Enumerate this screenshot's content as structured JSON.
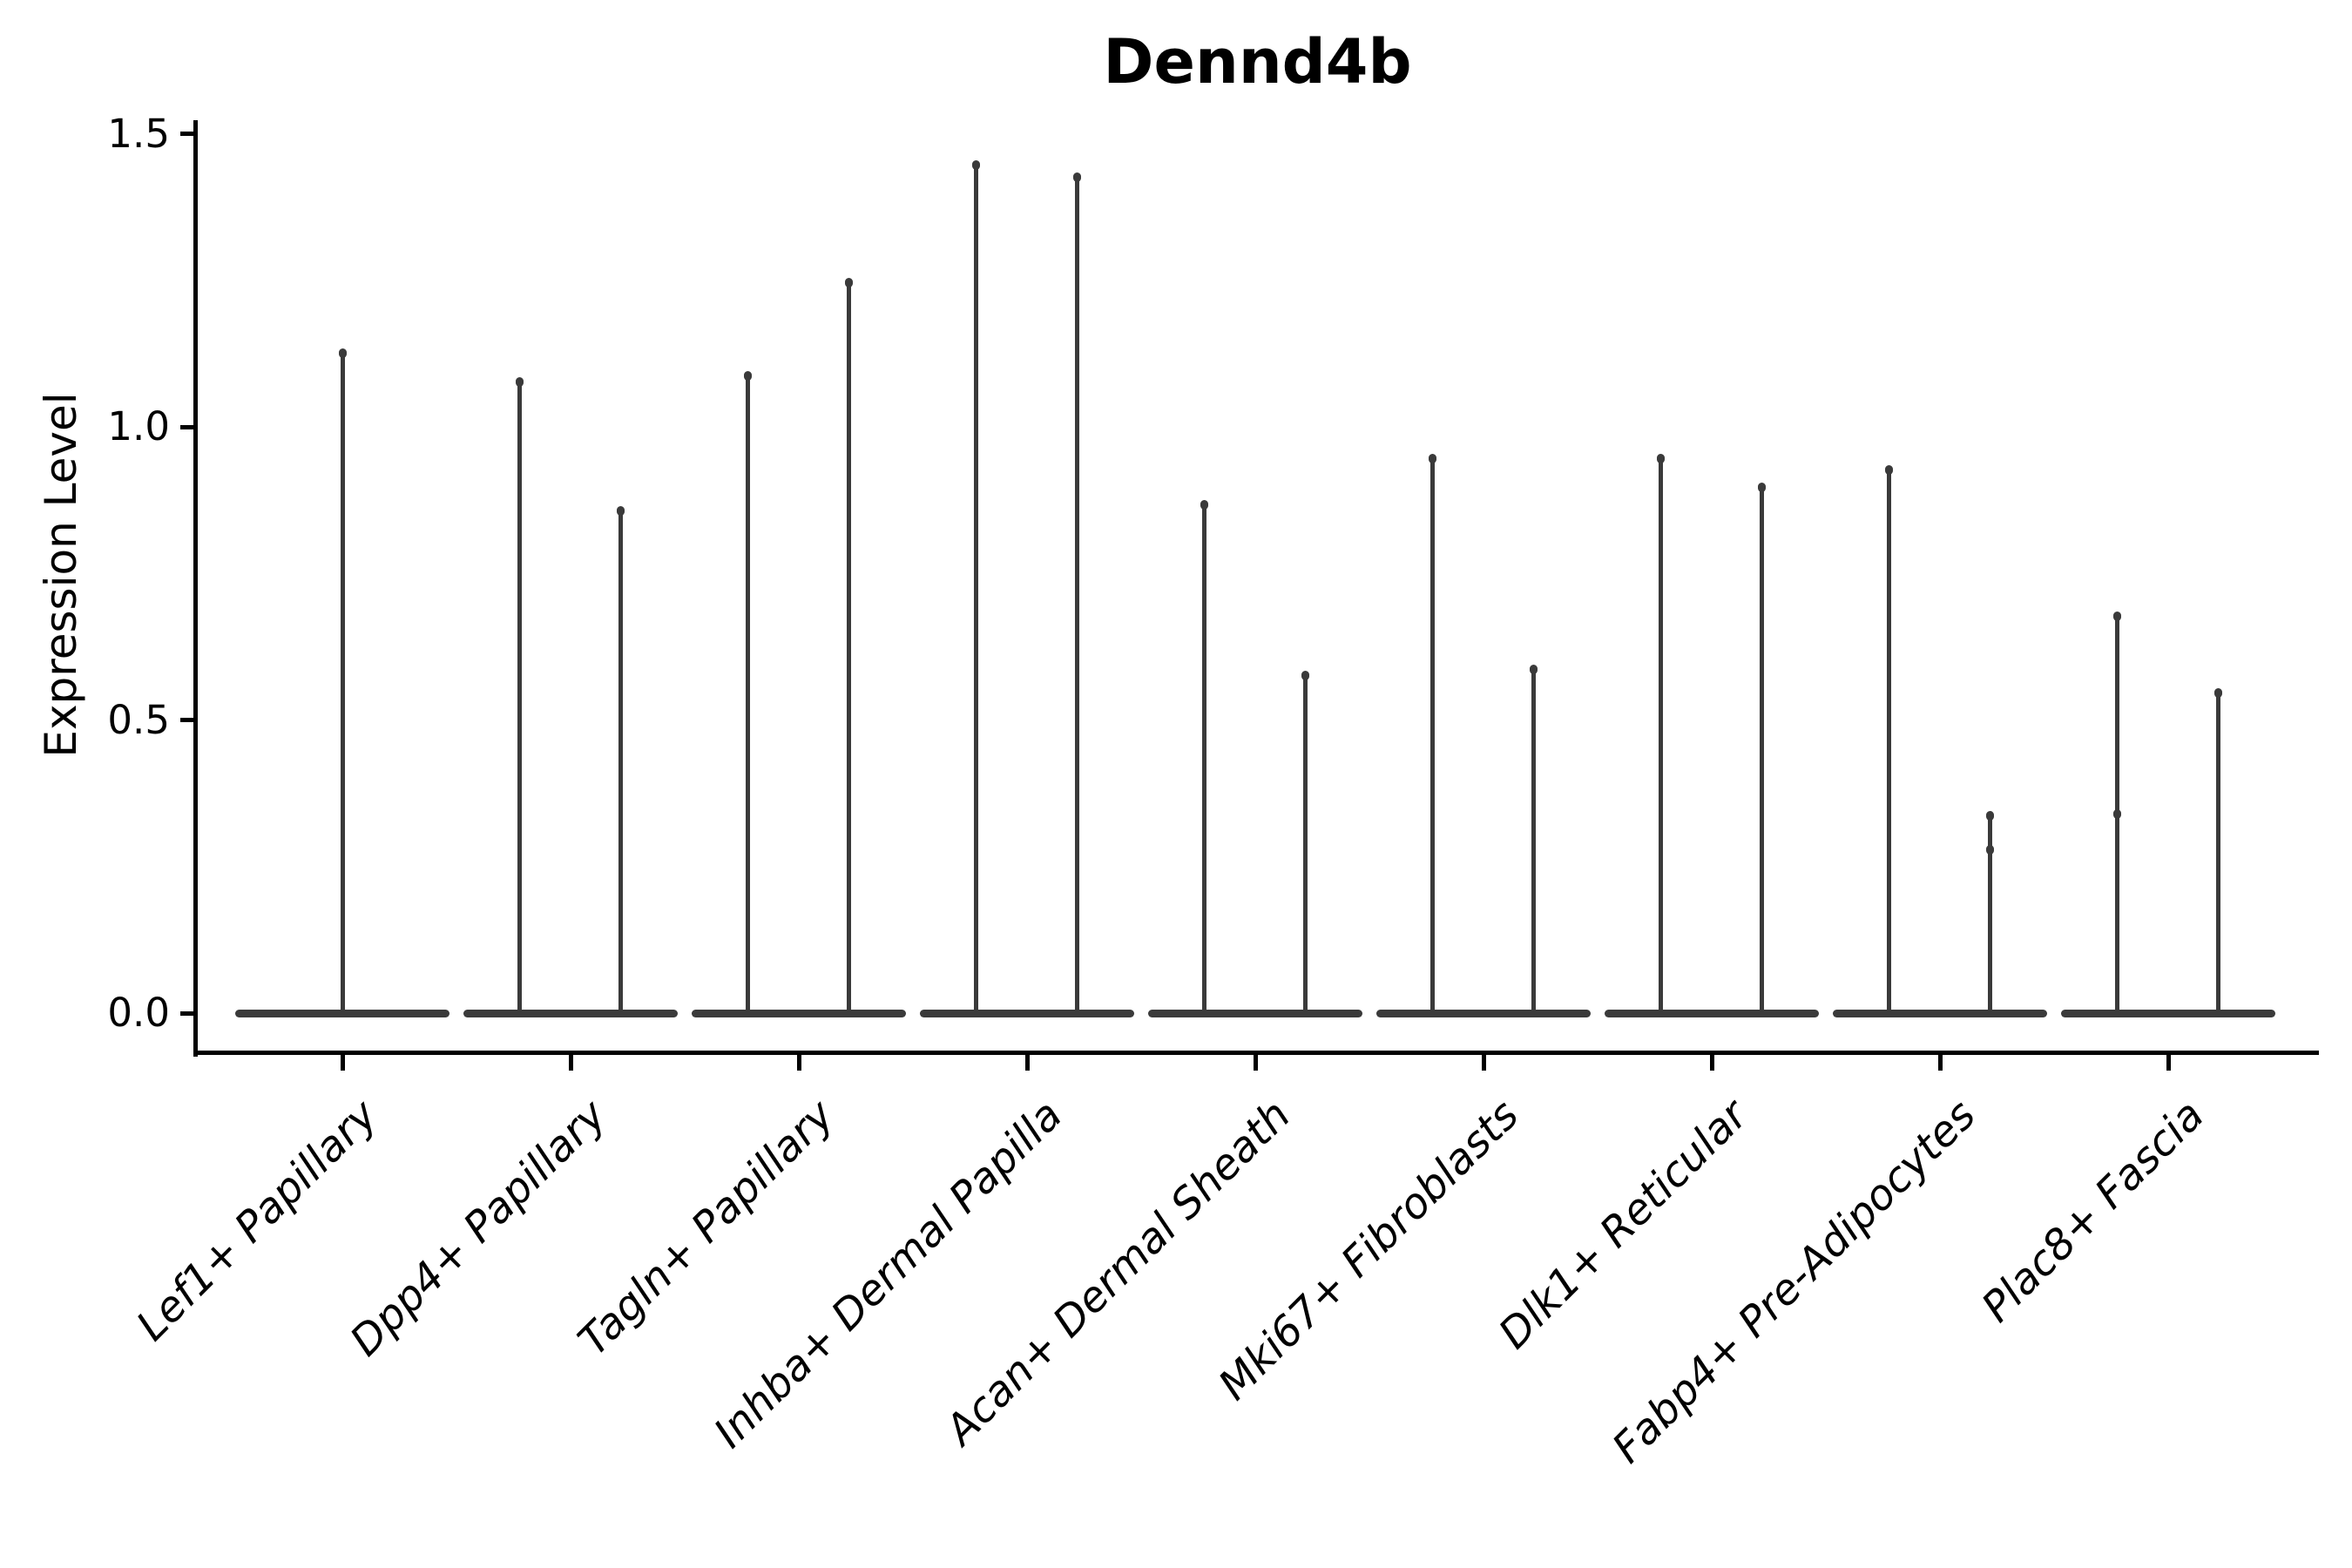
{
  "title": "Dennd4b",
  "axes": {
    "ylabel": "Expression Level",
    "ytick_labels": [
      "0.0",
      "0.5",
      "1.0",
      "1.5"
    ]
  },
  "colors": {
    "background": "#ffffff",
    "axis": "#000000",
    "text": "#000000",
    "violin": "#3a3a3a"
  },
  "chart_data": {
    "type": "violin",
    "title": "Dennd4b",
    "xlabel": "",
    "ylabel": "Expression Level",
    "ylim": [
      0,
      1.5
    ],
    "yticks": [
      0,
      0.5,
      1.0,
      1.5
    ],
    "grid": false,
    "legend": null,
    "categories": [
      "Lef1+ Papillary",
      "Dpp4+ Papillary",
      "Tagln+ Papillary",
      "Inhba+ Dermal Papilla",
      "Acan+ Dermal Sheath",
      "Mki67+ Fibroblasts",
      "Dlk1+ Reticular",
      "Fabp4+ Pre-Adipocytes",
      "Plac8+ Fascia"
    ],
    "violins": [
      {
        "category": "Lef1+ Papillary",
        "spike_maxima": [
          1.13
        ],
        "bumps": [
          []
        ]
      },
      {
        "category": "Dpp4+ Papillary",
        "spike_maxima": [
          1.08,
          0.86
        ],
        "bumps": [
          [],
          []
        ]
      },
      {
        "category": "Tagln+ Papillary",
        "spike_maxima": [
          1.09,
          1.25
        ],
        "bumps": [
          [],
          []
        ]
      },
      {
        "category": "Inhba+ Dermal Papilla",
        "spike_maxima": [
          1.45,
          1.43
        ],
        "bumps": [
          [],
          []
        ]
      },
      {
        "category": "Acan+ Dermal Sheath",
        "spike_maxima": [
          0.87,
          0.58
        ],
        "bumps": [
          [],
          []
        ]
      },
      {
        "category": "Mki67+ Fibroblasts",
        "spike_maxima": [
          0.95,
          0.59
        ],
        "bumps": [
          [],
          []
        ]
      },
      {
        "category": "Dlk1+ Reticular",
        "spike_maxima": [
          0.95,
          0.9
        ],
        "bumps": [
          [],
          []
        ]
      },
      {
        "category": "Fabp4+ Pre-Adipocytes",
        "spike_maxima": [
          0.93,
          0.34
        ],
        "bumps": [
          [],
          [
            0.28
          ]
        ]
      },
      {
        "category": "Plac8+ Fascia",
        "spike_maxima": [
          0.68,
          0.55
        ],
        "bumps": [
          [
            0.34
          ],
          []
        ]
      }
    ],
    "shape_note": "each violin has its density bulk at 0 (wide flat base on the zero line) and a thin spike rising to the group maximum"
  }
}
